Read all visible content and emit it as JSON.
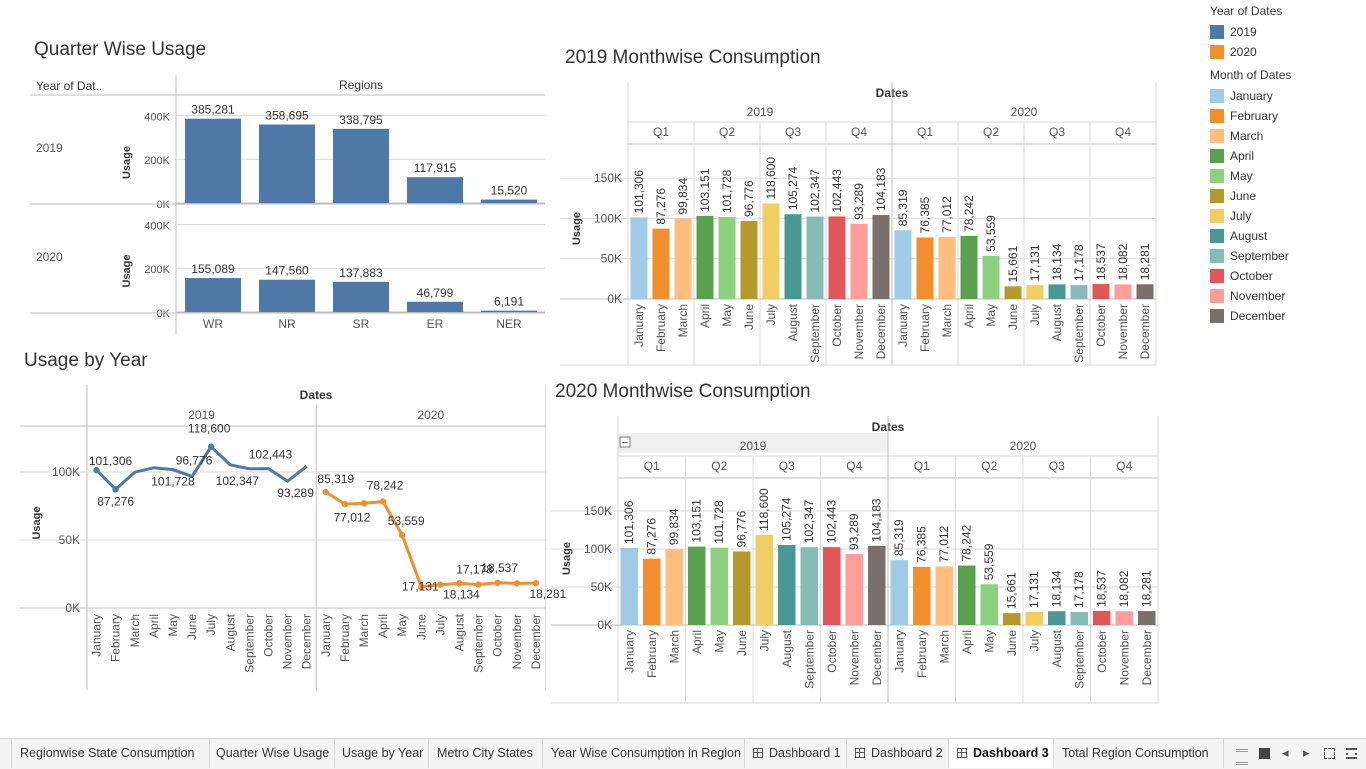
{
  "titles": {
    "quarter": "Quarter Wise Usage",
    "m2019": "2019 Monthwise Consumption",
    "usage_year": "Usage by Year",
    "m2020": "2020 Monthwise Consumption"
  },
  "months": [
    "January",
    "February",
    "March",
    "April",
    "May",
    "June",
    "July",
    "August",
    "September",
    "October",
    "November",
    "December"
  ],
  "colors": {
    "year_2019": "#4e79a7",
    "year_2020": "#f28e2b",
    "months": [
      "#a0cbe8",
      "#f28e2b",
      "#ffbe7d",
      "#59a14f",
      "#8cd17d",
      "#b6992d",
      "#f1ce63",
      "#499894",
      "#86bcb6",
      "#e15759",
      "#ff9d9a",
      "#79706e"
    ]
  },
  "legend": {
    "year_title": "Year of Dates",
    "years": [
      "2019",
      "2020"
    ],
    "month_title": "Month of Dates"
  },
  "quarter_chart": {
    "header_left": "Year of Dat..",
    "header_regions": "Regions",
    "ylabel": "Usage",
    "rows": [
      "2019",
      "2020"
    ],
    "ticks": [
      "400K",
      "200K",
      "0K"
    ],
    "regions": [
      "WR",
      "NR",
      "SR",
      "ER",
      "NER"
    ]
  },
  "monthwise": {
    "header": "Dates",
    "years": [
      "2019",
      "2020"
    ],
    "quarters": [
      "Q1",
      "Q2",
      "Q3",
      "Q4"
    ],
    "ylabel": "Usage",
    "ticks": [
      "150K",
      "100K",
      "50K",
      "0K"
    ]
  },
  "usage_by_year": {
    "header": "Dates",
    "years": [
      "2019",
      "2020"
    ],
    "ylabel": "Usage",
    "ticks": [
      "100K",
      "50K",
      "0K"
    ]
  },
  "chart_data": [
    {
      "type": "bar",
      "title": "Quarter Wise Usage",
      "categories": [
        "WR",
        "NR",
        "SR",
        "ER",
        "NER"
      ],
      "series": [
        {
          "name": "2019",
          "values": [
            385281,
            358695,
            338795,
            117915,
            15520
          ]
        },
        {
          "name": "2020",
          "values": [
            155089,
            147560,
            137883,
            46799,
            6191
          ]
        }
      ],
      "value_labels": [
        [
          "385,281",
          "358,695",
          "338,795",
          "117,915",
          "15,520"
        ],
        [
          "155,089",
          "147,560",
          "137,883",
          "46,799",
          "6,191"
        ]
      ],
      "ylabel": "Usage",
      "ylim": [
        0,
        450000
      ]
    },
    {
      "type": "bar",
      "title": "2019 Monthwise Consumption",
      "categories": [
        "January",
        "February",
        "March",
        "April",
        "May",
        "June",
        "July",
        "August",
        "September",
        "October",
        "November",
        "December",
        "January",
        "February",
        "March",
        "April",
        "May",
        "June",
        "July",
        "August",
        "September",
        "October",
        "November",
        "December"
      ],
      "values": [
        101306,
        87276,
        99834,
        103151,
        101728,
        96776,
        118600,
        105274,
        102347,
        102443,
        93289,
        104183,
        85319,
        76385,
        77012,
        78242,
        53559,
        15661,
        17131,
        18134,
        17178,
        18537,
        18082,
        18281
      ],
      "value_labels": [
        "101,306",
        "87,276",
        "99,834",
        "103,151",
        "101,728",
        "96,776",
        "118,600",
        "105,274",
        "102,347",
        "102,443",
        "93,289",
        "104,183",
        "85,319",
        "76,385",
        "77,012",
        "78,242",
        "53,559",
        "15,661",
        "17,131",
        "18,134",
        "17,178",
        "18,537",
        "18,082",
        "18,281"
      ],
      "ylabel": "Usage",
      "ylim": [
        0,
        175000
      ]
    },
    {
      "type": "line",
      "title": "Usage by Year",
      "x": [
        "January",
        "February",
        "March",
        "April",
        "May",
        "June",
        "July",
        "August",
        "September",
        "October",
        "November",
        "December"
      ],
      "series": [
        {
          "name": "2019",
          "values": [
            101306,
            87276,
            99834,
            103151,
            101728,
            96776,
            118600,
            105274,
            102347,
            102443,
            93289,
            104183
          ]
        },
        {
          "name": "2020",
          "values": [
            85319,
            76385,
            77012,
            78242,
            53559,
            15661,
            17131,
            18134,
            17178,
            18537,
            18082,
            18281
          ]
        }
      ],
      "point_labels": [
        {
          "idx": [
            0,
            1,
            4,
            5,
            6,
            8,
            9,
            10
          ],
          "text": [
            "101,306",
            "87,276",
            "101,728",
            "96,776",
            "118,600",
            "102,347",
            "102,443",
            "93,289"
          ]
        },
        {
          "idx": [
            0,
            2,
            3,
            4,
            6,
            7,
            8,
            9,
            11
          ],
          "text": [
            "85,319",
            "77,012",
            "78,242",
            "53,559",
            "17,131",
            "18,134",
            "17,178",
            "18,537",
            "18,281"
          ]
        }
      ],
      "ylabel": "Usage",
      "ylim": [
        0,
        125000
      ]
    },
    {
      "type": "bar",
      "title": "2020 Monthwise Consumption",
      "categories": [
        "January",
        "February",
        "March",
        "April",
        "May",
        "June",
        "July",
        "August",
        "September",
        "October",
        "November",
        "December",
        "January",
        "February",
        "March",
        "April",
        "May",
        "June",
        "July",
        "August",
        "September",
        "October",
        "November",
        "December"
      ],
      "values": [
        101306,
        87276,
        99834,
        103151,
        101728,
        96776,
        118600,
        105274,
        102347,
        102443,
        93289,
        104183,
        85319,
        76385,
        77012,
        78242,
        53559,
        15661,
        17131,
        18134,
        17178,
        18537,
        18082,
        18281
      ],
      "value_labels": [
        "101,306",
        "87,276",
        "99,834",
        "103,151",
        "101,728",
        "96,776",
        "118,600",
        "105,274",
        "102,347",
        "102,443",
        "93,289",
        "104,183",
        "85,319",
        "76,385",
        "77,012",
        "78,242",
        "53,559",
        "15,661",
        "17,131",
        "18,134",
        "17,178",
        "18,537",
        "18,082",
        "18,281"
      ],
      "ylabel": "Usage",
      "ylim": [
        0,
        175000
      ]
    }
  ],
  "tabs": [
    "Regionwise State Consumption",
    "Quarter Wise Usage",
    "Usage by Year",
    "Metro City States",
    "Year Wise Consumption in Region",
    "Dashboard 1",
    "Dashboard 2",
    "Dashboard 3",
    "Total Region Consumption"
  ],
  "active_tab": "Dashboard 3",
  "collapse_glyph": "−",
  "nav_icons": [
    "grid-view-icon",
    "single-view-icon",
    "prev-tab-icon",
    "next-tab-icon",
    "fit-icon",
    "fullscreen-icon"
  ]
}
